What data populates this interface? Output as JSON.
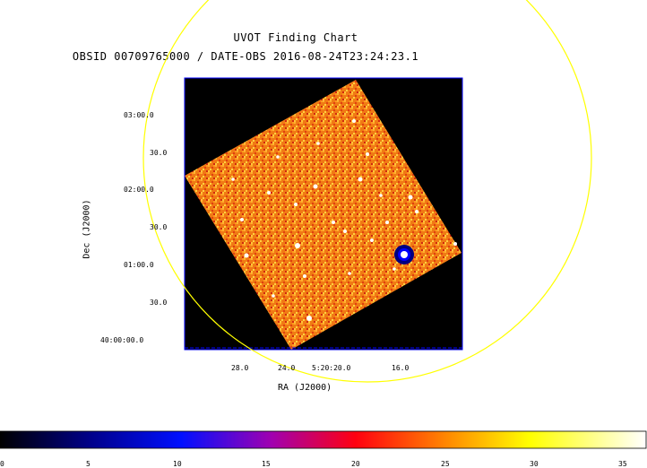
{
  "header": {
    "title": "UVOT Finding Chart",
    "subtitle": "OBSID 00709765000 / DATE-OBS 2016-08-24T23:24:23.1"
  },
  "axes": {
    "xlabel": "RA (J2000)",
    "ylabel": "Dec (J2000)",
    "xticks": [
      "28.0",
      "24.0",
      "5:20:20.0",
      "16.0"
    ],
    "yticks": [
      "03:00.0",
      "30.0",
      "02:00.0",
      "30.0",
      "01:00.0",
      "30.0",
      "40:00:00.0"
    ]
  },
  "colorbar": {
    "ticks": [
      "0",
      "5",
      "10",
      "15",
      "20",
      "25",
      "30",
      "35"
    ],
    "colors": [
      "#000000",
      "#0000ff",
      "#ff0000",
      "#ffff00",
      "#ffffff"
    ]
  },
  "image": {
    "frame_color": "#0000ff",
    "circle_color": "#ffff00",
    "background": "#000000"
  }
}
